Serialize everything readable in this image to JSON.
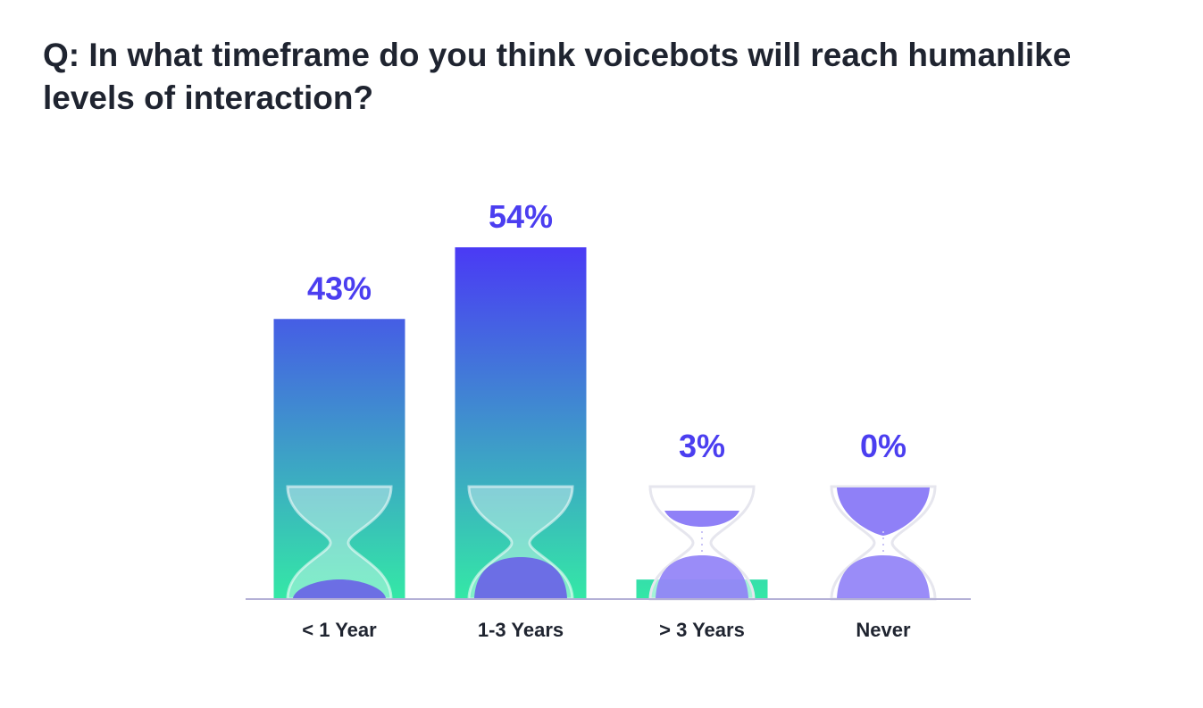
{
  "title": "Q: In what timeframe do you think voicebots will reach humanlike levels of interaction?",
  "colors": {
    "bar_top": "#4a3af5",
    "bar_bottom": "#34e8a6",
    "value_label": "#4b3ef0",
    "hourglass_sand": "#8f80f7",
    "hourglass_sand_on_bar": "#6a67e6",
    "baseline": "#b4b0d6",
    "category_label": "#1f2430"
  },
  "chart_data": {
    "type": "bar",
    "title": "Q: In what timeframe do you think voicebots will reach humanlike levels of interaction?",
    "categories": [
      "< 1 Year",
      "1-3 Years",
      "> 3 Years",
      "Never"
    ],
    "values": [
      43,
      54,
      3,
      0
    ],
    "value_labels": [
      "43%",
      "54%",
      "3%",
      "0%"
    ],
    "unit": "%",
    "xlabel": "",
    "ylabel": "",
    "ylim": [
      0,
      54
    ],
    "grid": false,
    "legend": "none",
    "decoration": "hourglass-icon"
  }
}
